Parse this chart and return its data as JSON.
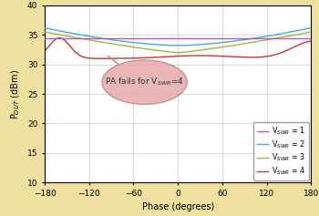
{
  "background_color": "#f0e0a0",
  "plot_bg_color": "#ffffff",
  "xlabel": "Phase (degrees)",
  "ylabel": "P$_{OUT}$ (dBm)",
  "xlim": [
    -180,
    180
  ],
  "ylim": [
    10,
    40
  ],
  "yticks": [
    10,
    15,
    20,
    25,
    30,
    35,
    40
  ],
  "xticks": [
    -180,
    -120,
    -60,
    0,
    60,
    120,
    180
  ],
  "colors": {
    "vswr1": "#bb55bb",
    "vswr2": "#44aadd",
    "vswr3": "#99bb33",
    "vswr4": "#cc3333"
  },
  "annotation_text": "PA fails for V$_{SWR}$=4",
  "annotation_facecolor": "#e8aaaa",
  "annotation_edgecolor": "#bb7777",
  "legend_labels": [
    "V$_{SWR}$ = 1",
    "V$_{SWR}$ = 2",
    "V$_{SWR}$ = 3",
    "V$_{SWR}$ = 4"
  ]
}
